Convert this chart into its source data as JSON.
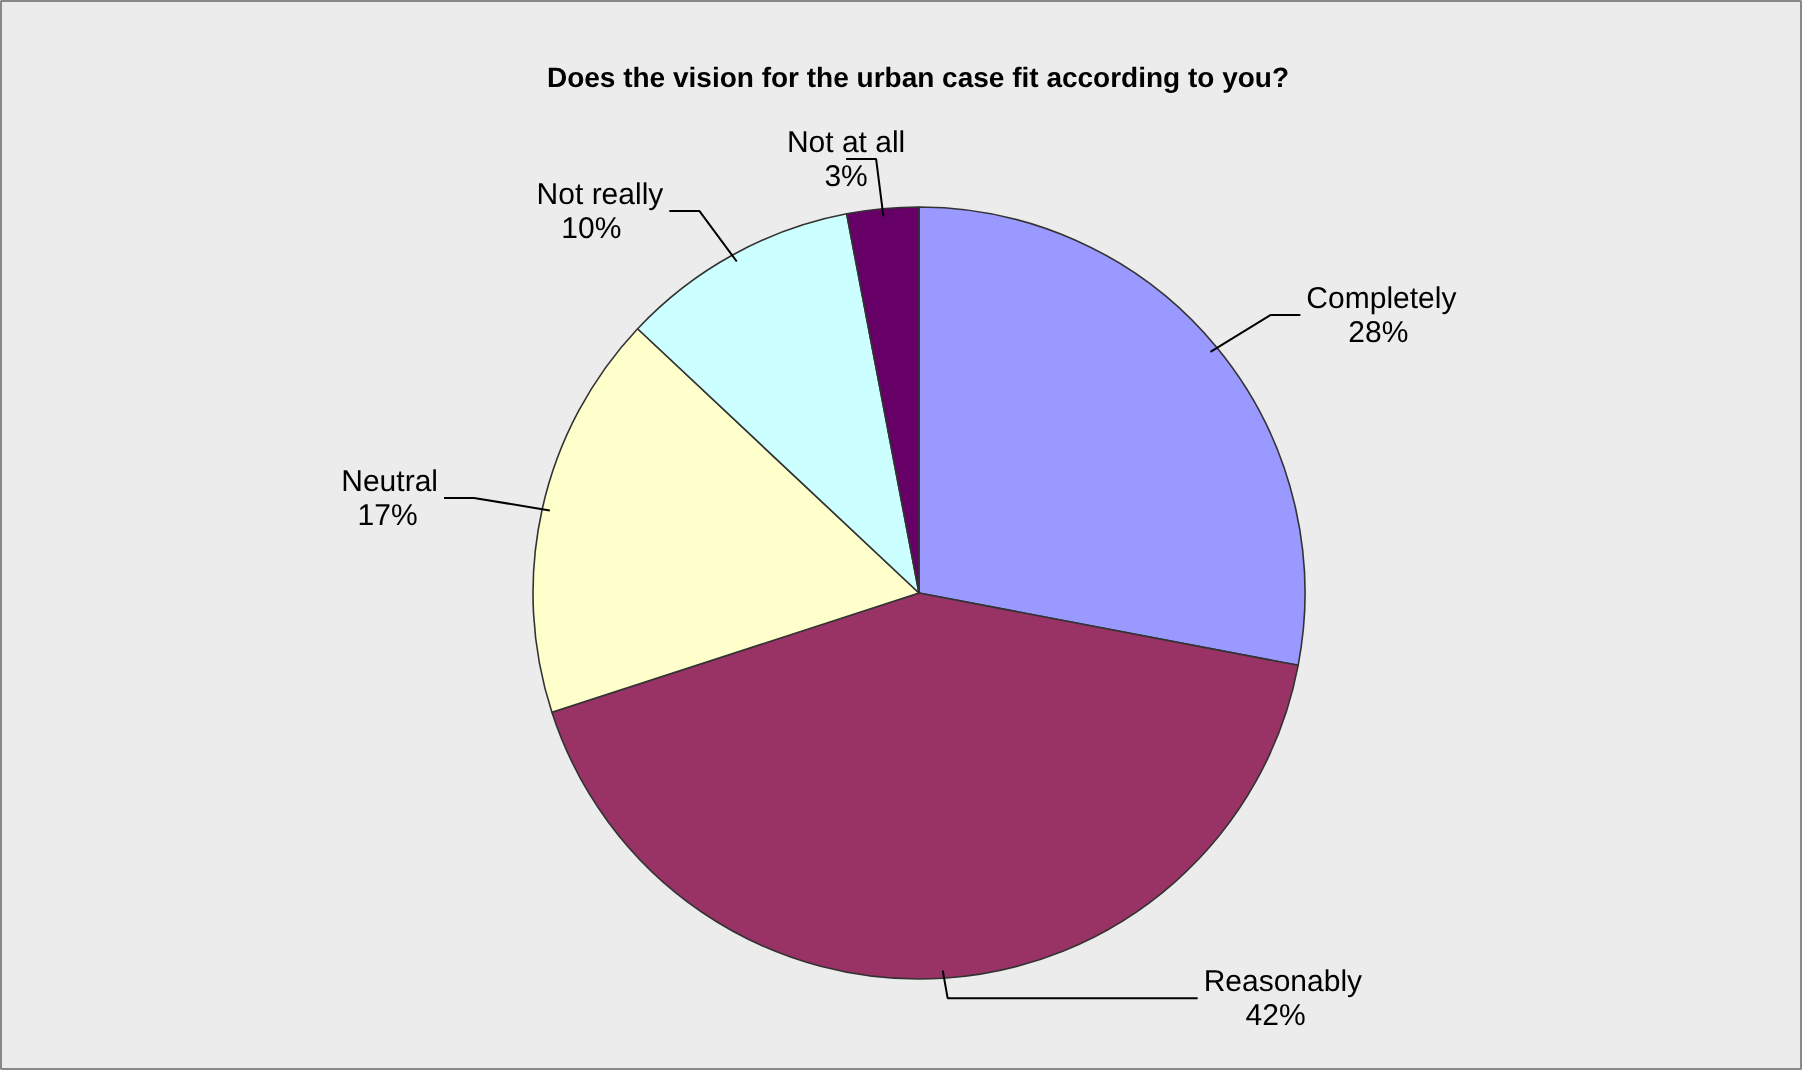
{
  "chart_data": {
    "type": "pie",
    "title": "Does the vision for the urban case fit according to you?",
    "categories": [
      "Completely",
      "Reasonably",
      "Neutral",
      "Not really",
      "Not at all"
    ],
    "values": [
      28,
      42,
      17,
      10,
      3
    ],
    "colors": [
      "#9999ff",
      "#993366",
      "#ffffcc",
      "#ccffff",
      "#660066"
    ],
    "value_labels": [
      "28%",
      "42%",
      "17%",
      "10%",
      "3%"
    ]
  }
}
